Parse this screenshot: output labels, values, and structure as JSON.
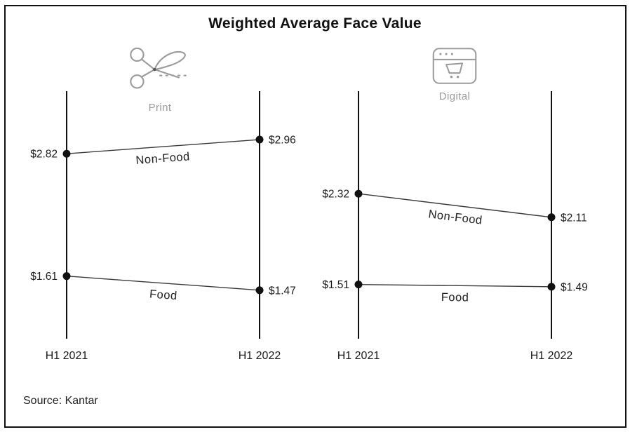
{
  "title": "Weighted Average Face Value",
  "source": "Source: Kantar",
  "colors": {
    "text": "#1d1d1d",
    "axis": "#111111",
    "series_line": "#3a3a3a",
    "point": "#111111",
    "icon_gray": "#9b9b9b"
  },
  "chart_data": [
    {
      "type": "line",
      "panel": "Print",
      "panel_icon": "scissors-icon",
      "categories": [
        "H1 2021",
        "H1 2022"
      ],
      "series": [
        {
          "name": "Non-Food",
          "values": [
            2.82,
            2.96
          ]
        },
        {
          "name": "Food",
          "values": [
            1.61,
            1.47
          ]
        }
      ],
      "value_prefix": "$",
      "ylim": [
        1.15,
        3.3
      ],
      "grid": false,
      "legend": "inline-on-line"
    },
    {
      "type": "line",
      "panel": "Digital",
      "panel_icon": "browser-cart-icon",
      "categories": [
        "H1 2021",
        "H1 2022"
      ],
      "series": [
        {
          "name": "Non-Food",
          "values": [
            2.32,
            2.11
          ]
        },
        {
          "name": "Food",
          "values": [
            1.51,
            1.49
          ]
        }
      ],
      "value_prefix": "$",
      "ylim": [
        1.17,
        3.11
      ],
      "grid": false,
      "legend": "inline-on-line"
    }
  ]
}
